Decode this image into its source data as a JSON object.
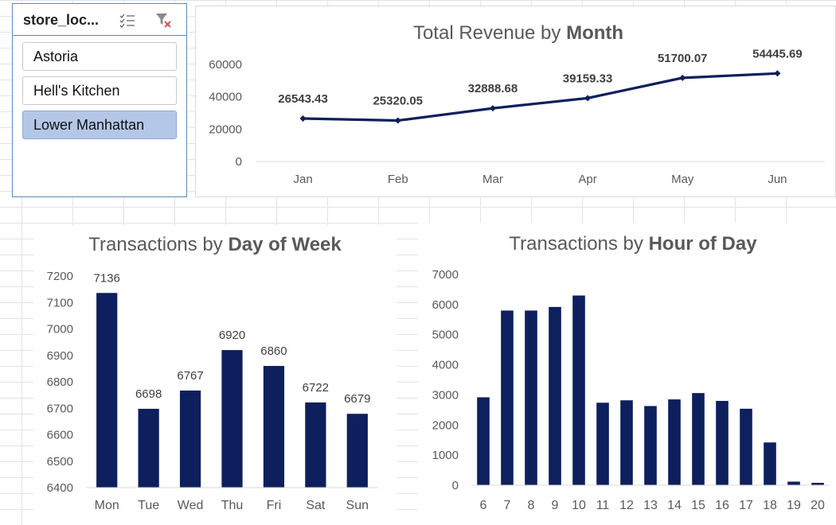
{
  "slicer": {
    "title": "store_loc...",
    "items": [
      {
        "label": "Astoria",
        "selected": false
      },
      {
        "label": "Hell's Kitchen",
        "selected": false
      },
      {
        "label": "Lower Manhattan",
        "selected": true
      }
    ],
    "icons": [
      "multi-select-icon",
      "clear-filter-icon"
    ]
  },
  "colors": {
    "series": "#0d1f5c",
    "slicer_selected": "#b4c7e7",
    "slicer_border": "#5b8ab8",
    "clear_filter_x": "#d9534f"
  },
  "chart_data": [
    {
      "type": "line",
      "title_regular": "Total Revenue by ",
      "title_bold": "Month",
      "categories": [
        "Jan",
        "Feb",
        "Mar",
        "Apr",
        "May",
        "Jun"
      ],
      "values": [
        26543.43,
        25320.05,
        32888.68,
        39159.33,
        51700.07,
        54445.69
      ],
      "data_labels": [
        "26543.43",
        "25320.05",
        "32888.68",
        "39159.33",
        "51700.07",
        "54445.69"
      ],
      "y_ticks": [
        "0",
        "20000",
        "40000",
        "60000"
      ],
      "ylim": [
        0,
        60000
      ],
      "grid": false,
      "legend": "none"
    },
    {
      "type": "bar",
      "title_regular": "Transactions by ",
      "title_bold": "Day of Week",
      "categories": [
        "Mon",
        "Tue",
        "Wed",
        "Thu",
        "Fri",
        "Sat",
        "Sun"
      ],
      "values": [
        7136,
        6698,
        6767,
        6920,
        6860,
        6722,
        6679
      ],
      "data_labels": [
        "7136",
        "6698",
        "6767",
        "6920",
        "6860",
        "6722",
        "6679"
      ],
      "y_ticks": [
        "6400",
        "6500",
        "6600",
        "6700",
        "6800",
        "6900",
        "7000",
        "7100",
        "7200"
      ],
      "ylim": [
        6400,
        7200
      ],
      "grid": false,
      "legend": "none"
    },
    {
      "type": "bar",
      "title_regular": "Transactions by ",
      "title_bold": "Hour of Day",
      "categories": [
        "6",
        "7",
        "8",
        "9",
        "10",
        "11",
        "12",
        "13",
        "14",
        "15",
        "16",
        "17",
        "18",
        "19",
        "20"
      ],
      "values": [
        2920,
        5800,
        5800,
        5920,
        6300,
        2740,
        2820,
        2630,
        2850,
        3060,
        2800,
        2540,
        1420,
        120,
        80
      ],
      "y_ticks": [
        "0",
        "1000",
        "2000",
        "3000",
        "4000",
        "5000",
        "6000",
        "7000"
      ],
      "ylim": [
        0,
        7000
      ],
      "grid": false,
      "legend": "none"
    }
  ]
}
